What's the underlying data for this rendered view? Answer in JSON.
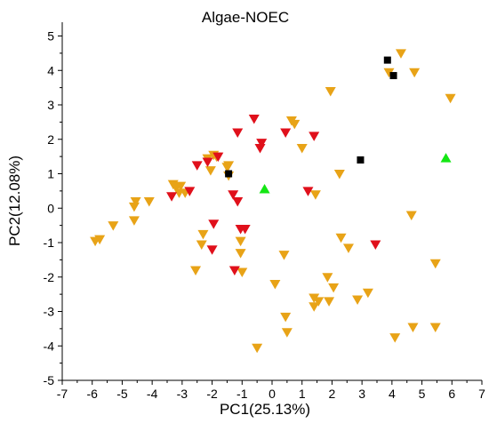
{
  "chart_data": {
    "type": "scatter",
    "title": "Algae-NOEC",
    "xlabel": "PC1(25.13%)",
    "ylabel": "PC2(12.08%)",
    "xlim": [
      -7,
      7
    ],
    "ylim": [
      -5,
      5.4
    ],
    "xticks": [
      -7,
      -6,
      -5,
      -4,
      -3,
      -2,
      -1,
      0,
      1,
      2,
      3,
      4,
      5,
      6,
      7
    ],
    "yticks": [
      -5,
      -4,
      -3,
      -2,
      -1,
      0,
      1,
      2,
      3,
      4,
      5
    ],
    "grid": false,
    "series": [
      {
        "marker": "triangle-down",
        "color": "#e8a317",
        "points": [
          [
            -5.9,
            -0.95
          ],
          [
            -5.75,
            -0.9
          ],
          [
            -5.3,
            -0.5
          ],
          [
            -4.6,
            -0.35
          ],
          [
            -4.6,
            0.05
          ],
          [
            -4.55,
            0.2
          ],
          [
            -4.1,
            0.2
          ],
          [
            -3.3,
            0.7
          ],
          [
            -3.2,
            0.6
          ],
          [
            -3.1,
            0.45
          ],
          [
            -3.05,
            0.65
          ],
          [
            -2.9,
            0.45
          ],
          [
            -2.3,
            -0.75
          ],
          [
            -2.35,
            -1.05
          ],
          [
            -2.55,
            -1.8
          ],
          [
            -2.15,
            1.45
          ],
          [
            -2.05,
            1.1
          ],
          [
            -1.95,
            1.55
          ],
          [
            -1.85,
            1.5
          ],
          [
            -1.5,
            1.2
          ],
          [
            -1.45,
            1.25
          ],
          [
            -1.05,
            -0.95
          ],
          [
            -1.05,
            -1.3
          ],
          [
            -1.0,
            -1.85
          ],
          [
            -1.45,
            0.95
          ],
          [
            -0.5,
            -4.05
          ],
          [
            0.1,
            -2.2
          ],
          [
            0.4,
            -1.35
          ],
          [
            0.45,
            -3.15
          ],
          [
            0.5,
            -3.6
          ],
          [
            0.65,
            2.55
          ],
          [
            0.75,
            2.45
          ],
          [
            1.0,
            1.75
          ],
          [
            1.4,
            -2.6
          ],
          [
            1.45,
            0.4
          ],
          [
            1.55,
            -2.7
          ],
          [
            1.85,
            -2.0
          ],
          [
            1.9,
            -2.7
          ],
          [
            1.95,
            3.4
          ],
          [
            2.05,
            -2.3
          ],
          [
            2.25,
            1.0
          ],
          [
            2.3,
            -0.85
          ],
          [
            2.55,
            -1.15
          ],
          [
            2.85,
            -2.65
          ],
          [
            3.2,
            -2.45
          ],
          [
            3.9,
            3.95
          ],
          [
            4.1,
            -3.75
          ],
          [
            4.3,
            4.5
          ],
          [
            4.65,
            -0.2
          ],
          [
            4.7,
            -3.45
          ],
          [
            4.75,
            3.95
          ],
          [
            5.45,
            -3.45
          ],
          [
            5.45,
            -1.6
          ],
          [
            5.95,
            3.2
          ],
          [
            1.4,
            -2.85
          ]
        ]
      },
      {
        "marker": "triangle-down",
        "color": "#e0101b",
        "points": [
          [
            -3.35,
            0.35
          ],
          [
            -2.75,
            0.5
          ],
          [
            -2.5,
            1.25
          ],
          [
            -2.15,
            1.35
          ],
          [
            -1.95,
            -0.45
          ],
          [
            -2.0,
            -1.2
          ],
          [
            -1.8,
            1.5
          ],
          [
            -1.15,
            2.2
          ],
          [
            -1.3,
            0.4
          ],
          [
            -1.15,
            0.2
          ],
          [
            -1.05,
            -0.6
          ],
          [
            -0.9,
            -0.6
          ],
          [
            -0.6,
            2.6
          ],
          [
            -0.35,
            1.9
          ],
          [
            -0.4,
            1.75
          ],
          [
            0.45,
            2.2
          ],
          [
            1.2,
            0.5
          ],
          [
            1.4,
            2.1
          ],
          [
            3.45,
            -1.05
          ],
          [
            -1.25,
            -1.8
          ]
        ]
      },
      {
        "marker": "square",
        "color": "#000000",
        "points": [
          [
            -1.45,
            1.0
          ],
          [
            2.95,
            1.4
          ],
          [
            3.85,
            4.3
          ],
          [
            4.05,
            3.85
          ]
        ]
      },
      {
        "marker": "triangle-up",
        "color": "#14e614",
        "points": [
          [
            -0.25,
            0.55
          ],
          [
            5.8,
            1.45
          ]
        ]
      }
    ]
  }
}
